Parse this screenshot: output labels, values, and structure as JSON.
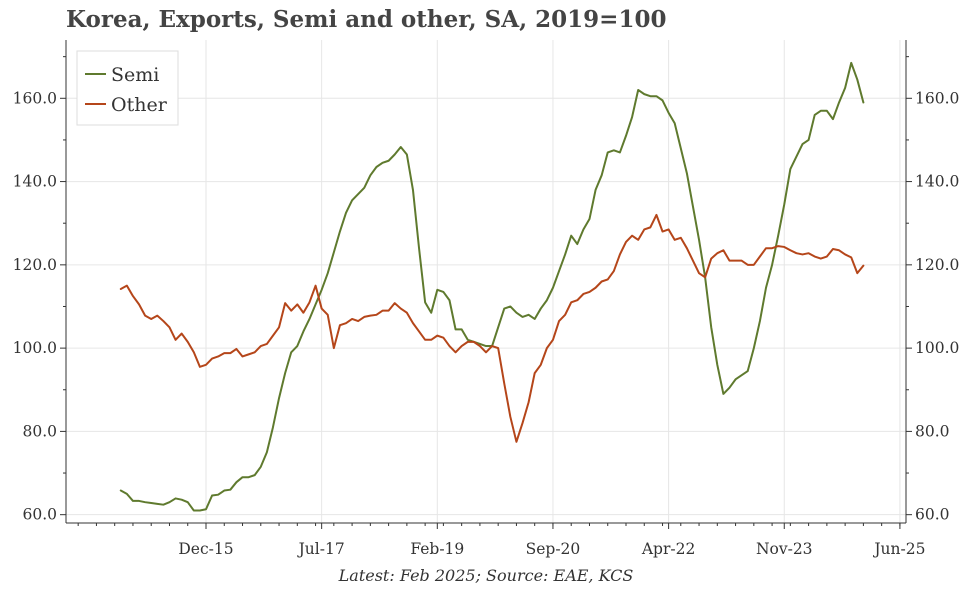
{
  "chart_data": {
    "type": "line",
    "title": "Korea, Exports, Semi and other, SA, 2019=100",
    "footer": "Latest: Feb 2025; Source: EAE, KCS",
    "xlabel": "",
    "ylabel": "",
    "x_start": "2014-10",
    "x_end": "2025-02",
    "x_range": [
      "2014-01",
      "2025-07"
    ],
    "ylim": [
      58,
      174
    ],
    "y_ticks": [
      60,
      80,
      100,
      120,
      140,
      160
    ],
    "y_tick_labels": [
      "60.0",
      "80.0",
      "100.0",
      "120.0",
      "140.0",
      "160.0"
    ],
    "x_ticks": [
      "2015-12",
      "2017-07",
      "2019-02",
      "2020-09",
      "2022-04",
      "2023-11",
      "2025-06"
    ],
    "x_tick_labels": [
      "Dec-15",
      "Jul-17",
      "Feb-19",
      "Sep-20",
      "Apr-22",
      "Nov-23",
      "Jun-25"
    ],
    "grid": true,
    "legend_position": "top-left",
    "series": [
      {
        "name": "Semi",
        "color": "#5f7a2e",
        "values": [
          65.8,
          65.0,
          63.3,
          63.3,
          63.0,
          62.8,
          62.6,
          62.4,
          63.0,
          63.9,
          63.6,
          63.0,
          61.0,
          61.0,
          61.3,
          64.6,
          64.8,
          65.8,
          66.0,
          67.8,
          69.0,
          69.0,
          69.5,
          71.5,
          75.0,
          81.0,
          88.0,
          94.0,
          99.0,
          100.5,
          104.0,
          107.0,
          110.5,
          114.0,
          118.0,
          123.0,
          128.0,
          132.5,
          135.5,
          137.0,
          138.5,
          141.5,
          143.5,
          144.5,
          145.0,
          146.5,
          148.3,
          146.5,
          138.0,
          124.0,
          111.0,
          108.5,
          114.0,
          113.5,
          111.5,
          104.5,
          104.5,
          102.0,
          101.5,
          101.0,
          100.5,
          100.5,
          105.0,
          109.5,
          110.0,
          108.5,
          107.5,
          108.0,
          107.0,
          109.5,
          111.5,
          114.5,
          118.5,
          122.5,
          127.0,
          125.0,
          128.5,
          131.0,
          138.0,
          141.5,
          147.0,
          147.5,
          147.0,
          151.0,
          155.5,
          162.0,
          161.0,
          160.5,
          160.5,
          159.5,
          156.5,
          154.0,
          148.0,
          142.0,
          134.0,
          126.0,
          117.0,
          105.0,
          96.0,
          89.0,
          90.5,
          92.5,
          93.5,
          94.5,
          100.0,
          106.5,
          114.5,
          120.0,
          127.0,
          134.5,
          143.0,
          146.0,
          149.0,
          150.0,
          156.0,
          157.0,
          157.0,
          155.0,
          159.0,
          162.5,
          168.5,
          164.5,
          159.0
        ]
      },
      {
        "name": "Other",
        "color": "#b5461a",
        "values": [
          114.2,
          115.0,
          112.5,
          110.5,
          107.8,
          107.0,
          107.8,
          106.5,
          105.0,
          102.0,
          103.5,
          101.5,
          99.0,
          95.5,
          96.0,
          97.5,
          98.0,
          98.8,
          98.8,
          99.8,
          98.0,
          98.5,
          99.0,
          100.5,
          101.0,
          103.0,
          105.0,
          110.8,
          109.0,
          110.5,
          108.5,
          111.0,
          115.0,
          109.5,
          108.0,
          100.0,
          105.5,
          106.0,
          107.0,
          106.5,
          107.5,
          107.8,
          108.0,
          109.0,
          109.0,
          110.8,
          109.5,
          108.5,
          106.0,
          104.0,
          102.0,
          102.0,
          103.0,
          102.5,
          100.5,
          99.0,
          100.5,
          101.5,
          101.5,
          100.5,
          99.0,
          100.5,
          100.0,
          91.5,
          83.5,
          77.5,
          82.0,
          87.0,
          94.0,
          96.0,
          100.0,
          102.0,
          106.5,
          108.0,
          111.0,
          111.5,
          113.0,
          113.5,
          114.5,
          116.0,
          116.5,
          118.5,
          122.5,
          125.5,
          127.0,
          126.0,
          128.5,
          129.0,
          132.0,
          128.0,
          128.5,
          126.0,
          126.5,
          124.0,
          121.0,
          118.0,
          117.0,
          121.5,
          122.8,
          123.5,
          121.0,
          121.0,
          121.0,
          120.0,
          120.0,
          122.0,
          124.0,
          124.0,
          124.5,
          124.3,
          123.5,
          122.8,
          122.5,
          122.8,
          122.0,
          121.5,
          122.0,
          123.8,
          123.5,
          122.5,
          121.8,
          118.0,
          119.8
        ]
      }
    ]
  }
}
